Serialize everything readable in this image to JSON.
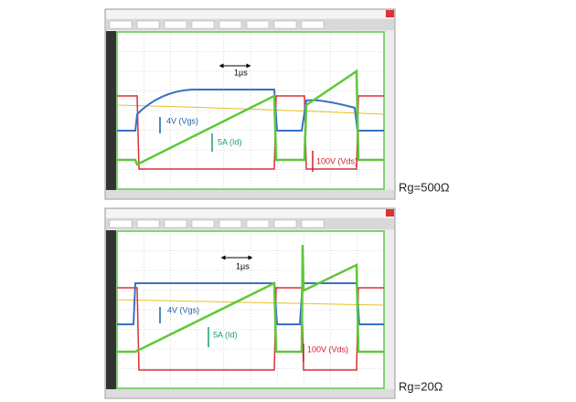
{
  "panels": [
    {
      "time_scale": "1µs",
      "vgs": "4V (Vgs)",
      "id": "5A (Id)",
      "vds": "100V (Vds)",
      "caption": "Rg=500Ω"
    },
    {
      "time_scale": "1µs",
      "vgs": "4V (Vgs)",
      "id": "5A (Id)",
      "vds": "100V (Vds)",
      "caption": "Rg=20Ω"
    }
  ]
}
